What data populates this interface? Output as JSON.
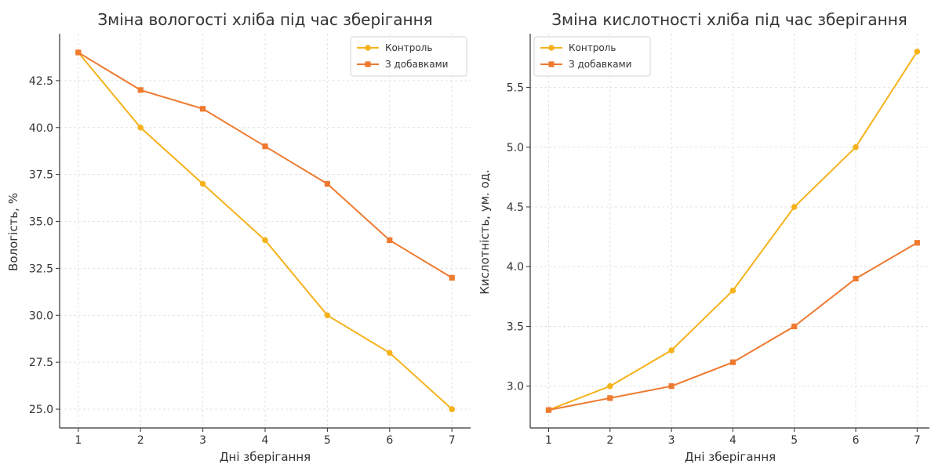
{
  "chart_data": [
    {
      "type": "line",
      "title": "Зміна вологості хліба під час зберігання",
      "xlabel": "Дні зберігання",
      "ylabel": "Вологість, %",
      "x": [
        1,
        2,
        3,
        4,
        5,
        6,
        7
      ],
      "xlim": [
        0.7,
        7.3
      ],
      "ylim": [
        24.0,
        45.0
      ],
      "yticks": [
        "25.0",
        "27.5",
        "30.0",
        "32.5",
        "35.0",
        "37.5",
        "40.0",
        "42.5"
      ],
      "grid": true,
      "legend_position": "top-right",
      "series": [
        {
          "name": "Контроль",
          "values": [
            44,
            40,
            37,
            34,
            30,
            28,
            25
          ],
          "color": "#f5b21b",
          "marker": "circle"
        },
        {
          "name": "З добавками",
          "values": [
            44,
            42,
            41,
            39,
            37,
            34,
            32
          ],
          "color": "#ee7a30",
          "marker": "square"
        }
      ]
    },
    {
      "type": "line",
      "title": "Зміна кислотності хліба під час зберігання",
      "xlabel": "Дні зберігання",
      "ylabel": "Кислотність, ум. од.",
      "x": [
        1,
        2,
        3,
        4,
        5,
        6,
        7
      ],
      "xlim": [
        0.7,
        7.2
      ],
      "ylim": [
        2.65,
        5.95
      ],
      "yticks": [
        "3.0",
        "3.5",
        "4.0",
        "4.5",
        "5.0",
        "5.5"
      ],
      "grid": true,
      "legend_position": "top-left",
      "series": [
        {
          "name": "Контроль",
          "values": [
            2.8,
            3.0,
            3.3,
            3.8,
            4.5,
            5.0,
            5.8
          ],
          "color": "#f5b21b",
          "marker": "circle"
        },
        {
          "name": "З добавками",
          "values": [
            2.8,
            2.9,
            3.0,
            3.2,
            3.5,
            3.9,
            4.2
          ],
          "color": "#ee7a30",
          "marker": "square"
        }
      ]
    }
  ]
}
